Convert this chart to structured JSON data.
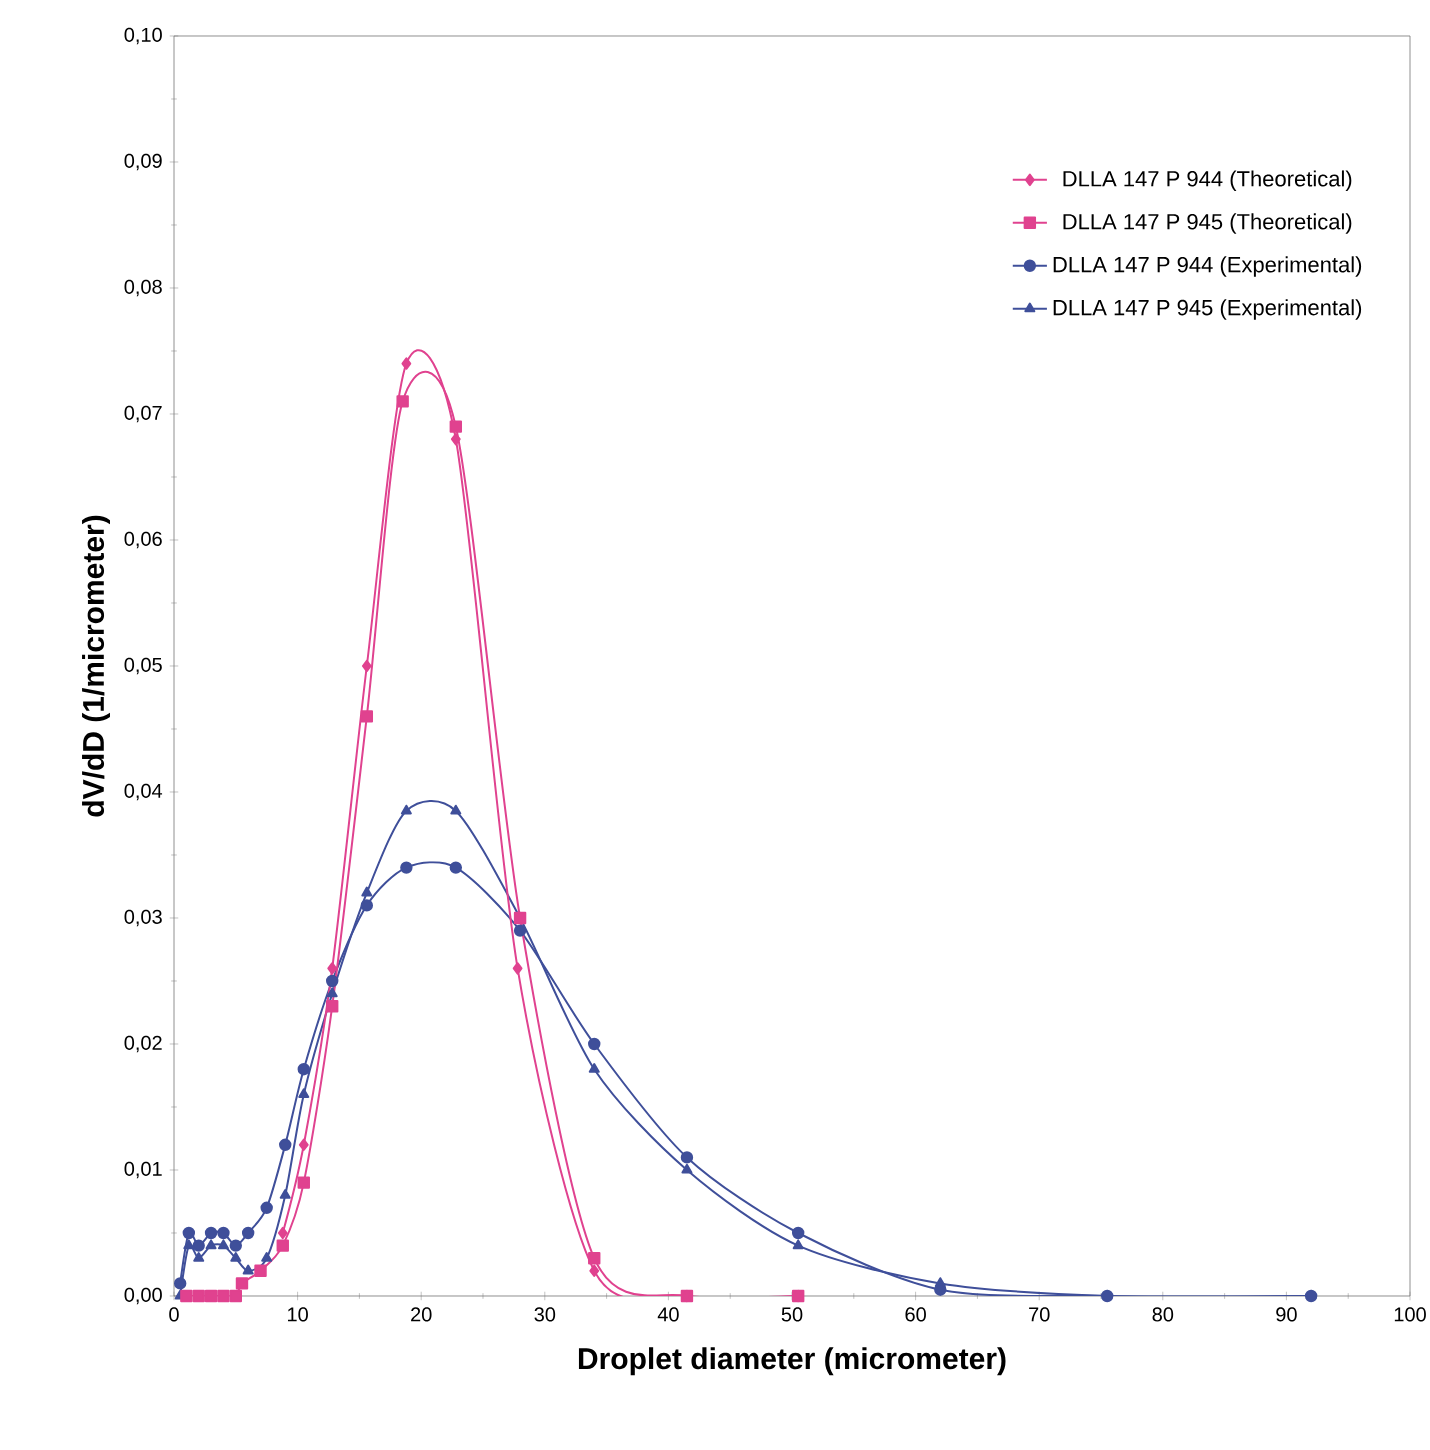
{
  "chart_data": {
    "type": "line",
    "xlabel": "Droplet diameter (micrometer)",
    "ylabel": "dV/dD (1/micrometer)",
    "xlim": [
      0,
      100
    ],
    "ylim": [
      0,
      0.1
    ],
    "xticks": [
      0,
      10,
      20,
      30,
      40,
      50,
      60,
      70,
      80,
      90,
      100
    ],
    "yticks": [
      {
        "value": 0,
        "label": "0,00"
      },
      {
        "value": 0.01,
        "label": "0,01"
      },
      {
        "value": 0.02,
        "label": "0,02"
      },
      {
        "value": 0.03,
        "label": "0,03"
      },
      {
        "value": 0.04,
        "label": "0,04"
      },
      {
        "value": 0.05,
        "label": "0,05"
      },
      {
        "value": 0.06,
        "label": "0,06"
      },
      {
        "value": 0.07,
        "label": "0,07"
      },
      {
        "value": 0.08,
        "label": "0,08"
      },
      {
        "value": 0.09,
        "label": "0,09"
      },
      {
        "value": 0.1,
        "label": "0,10"
      }
    ],
    "grid": false,
    "legend": "top right",
    "series": [
      {
        "name": "DLLA 147 P 944 (Theoretical)",
        "color": "#e0428f",
        "marker": "diamond",
        "x": [
          8.8,
          10.5,
          12.8,
          15.6,
          18.8,
          22.8,
          27.8,
          34,
          41.5,
          50.5
        ],
        "values": [
          0.005,
          0.012,
          0.026,
          0.05,
          0.074,
          0.068,
          0.026,
          0.002,
          0,
          0
        ]
      },
      {
        "name": "DLLA 147 P 945 (Theoretical)",
        "color": "#e0428f",
        "marker": "square",
        "x": [
          1,
          2,
          3,
          4,
          5,
          5.5,
          7,
          8.8,
          10.5,
          12.8,
          15.6,
          18.5,
          22.8,
          28,
          34,
          41.5,
          50.5
        ],
        "values": [
          0,
          0,
          0,
          0,
          0,
          0.001,
          0.002,
          0.004,
          0.009,
          0.023,
          0.046,
          0.071,
          0.069,
          0.03,
          0.003,
          0,
          0
        ]
      },
      {
        "name": "DLLA 147 P 944 (Experimental)",
        "color": "#3f4f9a",
        "marker": "circle",
        "x": [
          0.5,
          1.2,
          2,
          3,
          4,
          5,
          6,
          7.5,
          9,
          10.5,
          12.8,
          15.6,
          18.8,
          22.8,
          28,
          34,
          41.5,
          50.5,
          62,
          75.5,
          92
        ],
        "values": [
          0.001,
          0.005,
          0.004,
          0.005,
          0.005,
          0.004,
          0.005,
          0.007,
          0.012,
          0.018,
          0.025,
          0.031,
          0.034,
          0.034,
          0.029,
          0.02,
          0.011,
          0.005,
          0.0005,
          0,
          0
        ]
      },
      {
        "name": "DLLA 147 P 945 (Experimental)",
        "color": "#3f4f9a",
        "marker": "triangle",
        "x": [
          0.5,
          1.2,
          2,
          3,
          4,
          5,
          6,
          7.5,
          9,
          10.5,
          12.8,
          15.6,
          18.8,
          22.8,
          28,
          34,
          41.5,
          50.5,
          62,
          75.5,
          92
        ],
        "values": [
          0,
          0.004,
          0.003,
          0.004,
          0.004,
          0.003,
          0.002,
          0.003,
          0.008,
          0.016,
          0.024,
          0.032,
          0.0385,
          0.0385,
          0.03,
          0.018,
          0.01,
          0.004,
          0.001,
          0,
          0
        ]
      }
    ]
  }
}
